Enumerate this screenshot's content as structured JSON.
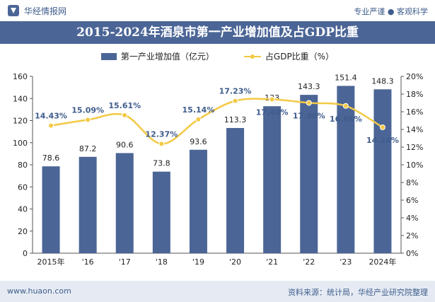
{
  "header": {
    "brand": "华经情报网",
    "tagline": "专业严谨 ● 客观科学"
  },
  "colors": {
    "bar": "#4b6596",
    "line": "#f3c945",
    "band": "#4b6596",
    "pct_label": "#3f5d8c"
  },
  "chart_data": {
    "type": "bar",
    "title": "2015-2024年酒泉市第一产业增加值及占GDP比重",
    "categories": [
      "2015年",
      "'16",
      "'17",
      "'18",
      "'19",
      "'20",
      "'21",
      "'22",
      "'23",
      "2024年"
    ],
    "series": [
      {
        "name": "第一产业增加值（亿元）",
        "type": "bar",
        "axis": "left",
        "values": [
          78.6,
          87.2,
          90.6,
          73.8,
          93.6,
          113.3,
          133,
          143.3,
          151.4,
          148.3
        ],
        "labels": [
          "78.6",
          "87.2",
          "90.6",
          "73.8",
          "93.6",
          "113.3",
          "133",
          "143.3",
          "151.4",
          "148.3"
        ]
      },
      {
        "name": "占GDP比重（%）",
        "type": "line",
        "axis": "right",
        "values": [
          14.43,
          15.09,
          15.61,
          12.37,
          15.14,
          17.23,
          17.4,
          17.0,
          16.66,
          14.24
        ],
        "labels": [
          "14.43%",
          "15.09%",
          "15.61%",
          "12.37%",
          "15.14%",
          "17.23%",
          "17.40%",
          "17.00%",
          "16.66%",
          "14.24%"
        ]
      }
    ],
    "y_left": {
      "min": 0,
      "max": 160,
      "ticks": [
        "0",
        "20",
        "40",
        "60",
        "80",
        "100",
        "120",
        "140",
        "160"
      ]
    },
    "y_right": {
      "min": 0,
      "max": 20,
      "ticks": [
        "0%",
        "2%",
        "4%",
        "6%",
        "8%",
        "10%",
        "12%",
        "14%",
        "16%",
        "18%",
        "20%"
      ]
    },
    "grid": false,
    "legend": "top-center"
  },
  "footer": {
    "url": "www.huaon.com",
    "source": "资料来源：统计局，华经产业研究院整理"
  }
}
